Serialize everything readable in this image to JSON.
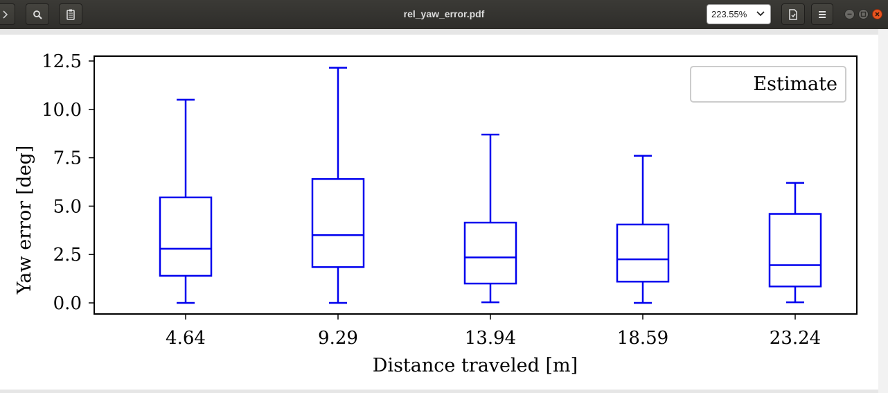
{
  "window": {
    "title": "rel_yaw_error.pdf",
    "zoom": "223.55%"
  },
  "icons": {
    "back": "chevron-right-icon",
    "search": "search-icon",
    "annotations": "clipboard-icon",
    "save": "document-icon",
    "menu": "hamburger-icon"
  },
  "colors": {
    "box": "#0000ee",
    "titlebar": "#33322f",
    "close": "#e95420"
  },
  "chart_data": {
    "type": "box",
    "xlabel": "Distance traveled [m]",
    "ylabel": "Yaw error [deg]",
    "ylim": [
      -0.6,
      12.8
    ],
    "yticks": [
      "0.0",
      "2.5",
      "5.0",
      "7.5",
      "10.0",
      "12.5"
    ],
    "legend": {
      "label": "Estimate",
      "placement": "top-right"
    },
    "categories": [
      "4.64",
      "9.29",
      "13.94",
      "18.59",
      "23.24"
    ],
    "boxes": [
      {
        "category": "4.64",
        "whislo": 0.0,
        "q1": 1.4,
        "median": 2.8,
        "q3": 5.45,
        "whishi": 10.5
      },
      {
        "category": "9.29",
        "whislo": 0.0,
        "q1": 1.85,
        "median": 3.5,
        "q3": 6.4,
        "whishi": 12.15
      },
      {
        "category": "13.94",
        "whislo": 0.03,
        "q1": 1.0,
        "median": 2.35,
        "q3": 4.15,
        "whishi": 8.7
      },
      {
        "category": "18.59",
        "whislo": 0.0,
        "q1": 1.1,
        "median": 2.25,
        "q3": 4.05,
        "whishi": 7.6
      },
      {
        "category": "23.24",
        "whislo": 0.03,
        "q1": 0.85,
        "median": 1.95,
        "q3": 4.6,
        "whishi": 6.2
      }
    ]
  }
}
